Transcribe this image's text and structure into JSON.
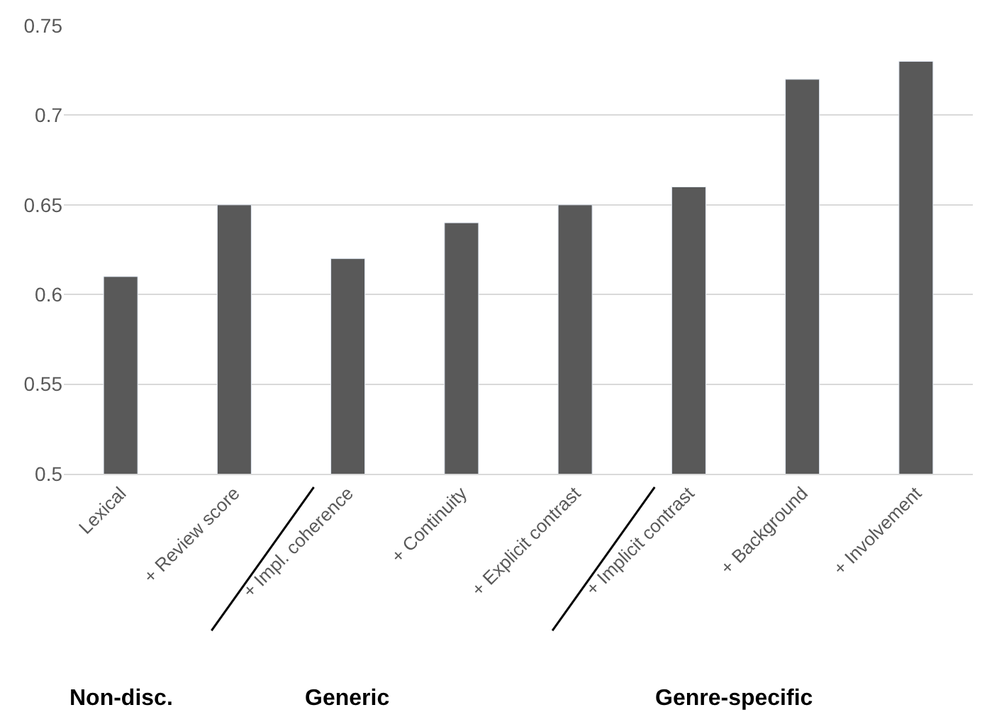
{
  "chart_data": {
    "type": "bar",
    "categories": [
      "Lexical",
      "+ Review score",
      "+ Impl. coherence",
      "+ Continuity",
      "+ Explicit contrast",
      "+ Implicit contrast",
      "+ Background",
      "+ Involvement"
    ],
    "values": [
      0.61,
      0.65,
      0.62,
      0.64,
      0.65,
      0.66,
      0.72,
      0.73
    ],
    "color": "#595959",
    "ylim": [
      0.5,
      0.75
    ],
    "yticks": [
      0.5,
      0.55,
      0.6,
      0.65,
      0.7,
      0.75
    ],
    "grid": "y",
    "annotations": [
      "Non-disc.",
      "Generic",
      "Genre-specific"
    ]
  }
}
